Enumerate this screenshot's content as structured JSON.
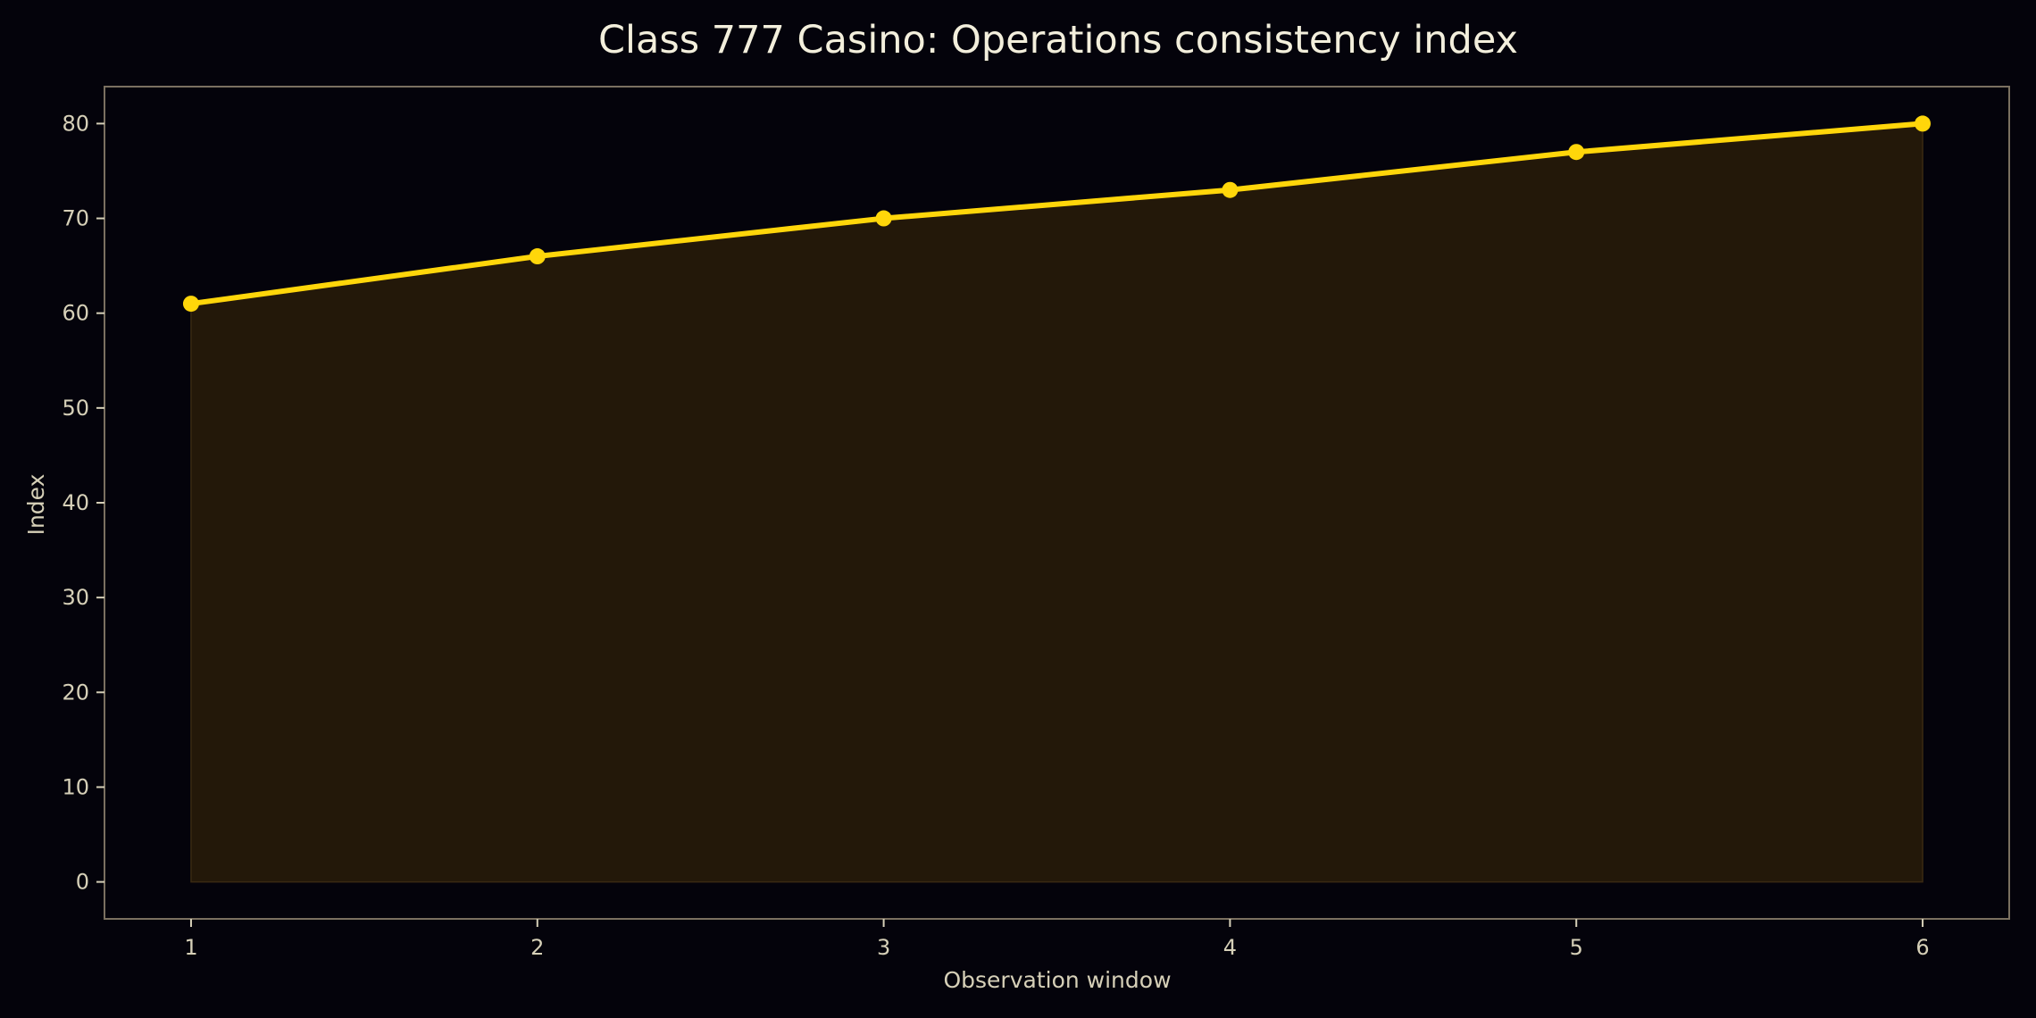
{
  "chart_data": {
    "type": "area",
    "title": "Class 777 Casino: Operations consistency index",
    "xlabel": "Observation window",
    "ylabel": "Index",
    "x": [
      1,
      2,
      3,
      4,
      5,
      6
    ],
    "categories": [
      "1",
      "2",
      "3",
      "4",
      "5",
      "6"
    ],
    "series": [
      {
        "name": "Operations consistency index",
        "values": [
          61,
          66,
          70,
          73,
          77,
          80
        ],
        "color": "#ffd60a",
        "fill_color": "#231809",
        "markers": true
      }
    ],
    "xlim": [
      0.75,
      6.25
    ],
    "ylim": [
      -3.9,
      83.9
    ],
    "xticks": [
      1,
      2,
      3,
      4,
      5,
      6
    ],
    "yticks": [
      0,
      10,
      20,
      30,
      40,
      50,
      60,
      70,
      80
    ],
    "ytick_labels": [
      "0",
      "10",
      "20",
      "30",
      "40",
      "50",
      "60",
      "70",
      "80"
    ],
    "xtick_labels": [
      "1",
      "2",
      "3",
      "4",
      "5",
      "6"
    ],
    "grid": false,
    "legend": null
  },
  "colors": {
    "background": "#04030b",
    "axes_frame": "#7a7060",
    "text": "#d6d0b8",
    "title": "#f3efdc",
    "line": "#ffd60a",
    "fill": "#231809"
  }
}
